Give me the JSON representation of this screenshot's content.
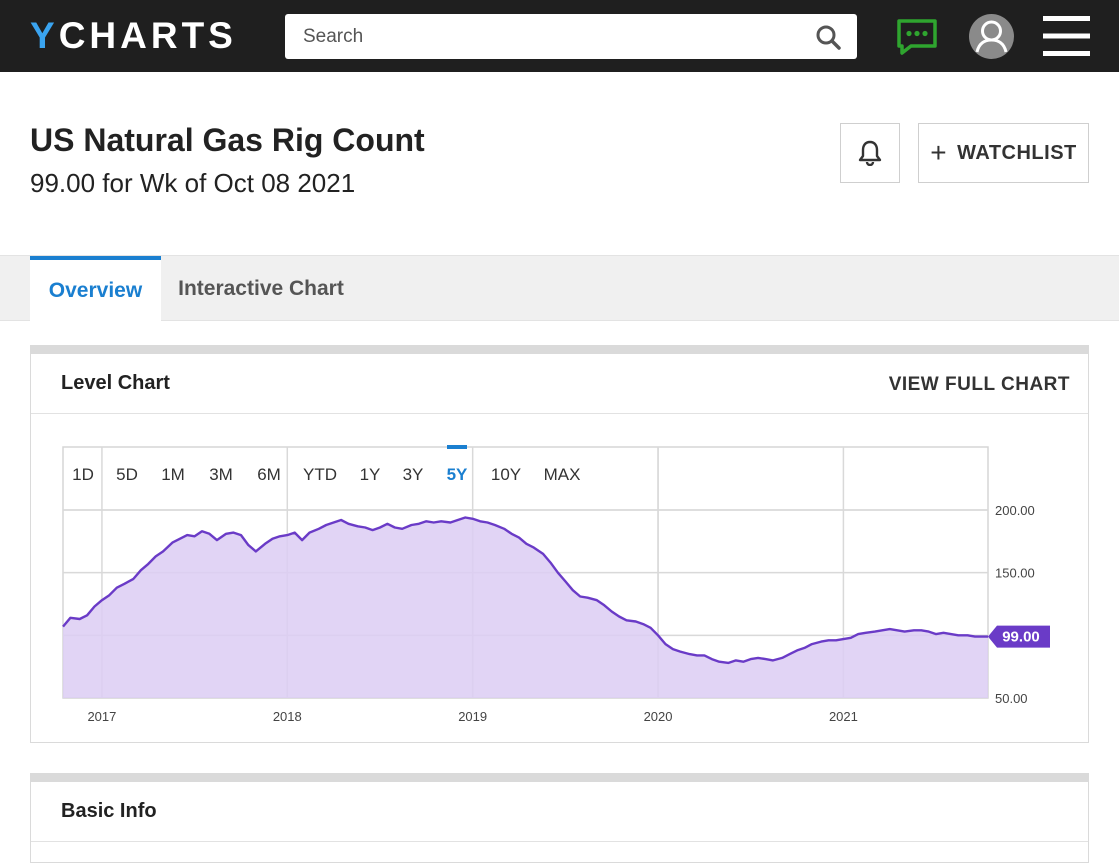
{
  "nav": {
    "logo_y": "Y",
    "logo_rest": "CHARTS",
    "search_placeholder": "Search"
  },
  "header": {
    "title": "US Natural Gas Rig Count",
    "subtitle": "99.00 for Wk of Oct 08 2021",
    "watchlist_label": "WATCHLIST"
  },
  "tabs": [
    {
      "label": "Overview",
      "active": true
    },
    {
      "label": "Interactive Chart",
      "active": false
    }
  ],
  "level_chart": {
    "title": "Level Chart",
    "view_full_label": "VIEW FULL CHART",
    "ranges": [
      "1D",
      "5D",
      "1M",
      "3M",
      "6M",
      "YTD",
      "1Y",
      "3Y",
      "5Y",
      "10Y",
      "MAX"
    ],
    "selected_range": "5Y"
  },
  "basic_info": {
    "title": "Basic Info"
  },
  "colors": {
    "accent": "#1a7fd0",
    "series_line": "#6a3bc7",
    "series_fill": "#dccdf3",
    "chat_icon": "#2fa52f"
  },
  "chart_data": {
    "type": "area",
    "ylim": [
      50,
      200
    ],
    "yticks": [
      "200.00",
      "150.00",
      "100.00",
      "50.00"
    ],
    "ytick_values": [
      200,
      150,
      100,
      50
    ],
    "x_ticks": [
      "2017",
      "2018",
      "2019",
      "2020",
      "2021"
    ],
    "x_tick_years": [
      2017,
      2018,
      2019,
      2020,
      2021
    ],
    "x_range": [
      2016.79,
      2021.78
    ],
    "last_value_label": "99.00",
    "last_value": 99,
    "series": [
      {
        "x": [
          2016.79,
          2016.83,
          2016.88,
          2016.92,
          2016.96,
          2017.0,
          2017.04,
          2017.08,
          2017.12,
          2017.17,
          2017.21,
          2017.25,
          2017.29,
          2017.33,
          2017.38,
          2017.42,
          2017.46,
          2017.5,
          2017.54,
          2017.58,
          2017.62,
          2017.67,
          2017.71,
          2017.75,
          2017.79,
          2017.83,
          2017.88,
          2017.92,
          2017.96,
          2018.0,
          2018.04,
          2018.08,
          2018.12,
          2018.17,
          2018.21,
          2018.25,
          2018.29,
          2018.33,
          2018.38,
          2018.42,
          2018.46,
          2018.5,
          2018.54,
          2018.58,
          2018.62,
          2018.67,
          2018.71,
          2018.75,
          2018.79,
          2018.83,
          2018.88,
          2018.92,
          2018.96,
          2019.0,
          2019.04,
          2019.08,
          2019.12,
          2019.17,
          2019.21,
          2019.25,
          2019.29,
          2019.33,
          2019.38,
          2019.42,
          2019.46,
          2019.5,
          2019.54,
          2019.58,
          2019.62,
          2019.67,
          2019.71,
          2019.75,
          2019.79,
          2019.83,
          2019.88,
          2019.92,
          2019.96,
          2020.0,
          2020.04,
          2020.08,
          2020.12,
          2020.17,
          2020.21,
          2020.25,
          2020.29,
          2020.33,
          2020.38,
          2020.42,
          2020.46,
          2020.5,
          2020.54,
          2020.58,
          2020.62,
          2020.67,
          2020.71,
          2020.75,
          2020.79,
          2020.83,
          2020.88,
          2020.92,
          2020.96,
          2021.0,
          2021.04,
          2021.08,
          2021.12,
          2021.17,
          2021.21,
          2021.25,
          2021.29,
          2021.33,
          2021.38,
          2021.42,
          2021.46,
          2021.5,
          2021.54,
          2021.58,
          2021.62,
          2021.67,
          2021.71,
          2021.75,
          2021.78
        ],
        "values": [
          107,
          114,
          113,
          116,
          123,
          128,
          132,
          138,
          141,
          145,
          152,
          157,
          163,
          167,
          174,
          177,
          180,
          179,
          183,
          181,
          176,
          181,
          182,
          180,
          172,
          167,
          173,
          177,
          179,
          180,
          182,
          176,
          182,
          185,
          188,
          190,
          192,
          189,
          187,
          186,
          184,
          186,
          189,
          186,
          185,
          188,
          189,
          191,
          190,
          191,
          190,
          192,
          194,
          193,
          191,
          190,
          188,
          185,
          181,
          178,
          173,
          170,
          165,
          158,
          150,
          143,
          136,
          131,
          130,
          128,
          124,
          119,
          115,
          112,
          111,
          109,
          106,
          100,
          93,
          89,
          87,
          85,
          84,
          84,
          81,
          79,
          78,
          80,
          79,
          81,
          82,
          81,
          80,
          82,
          85,
          88,
          90,
          93,
          95,
          96,
          96,
          97,
          98,
          101,
          102,
          103,
          104,
          105,
          104,
          103,
          104,
          104,
          103,
          101,
          102,
          101,
          100,
          100,
          99,
          99,
          99
        ]
      }
    ]
  }
}
